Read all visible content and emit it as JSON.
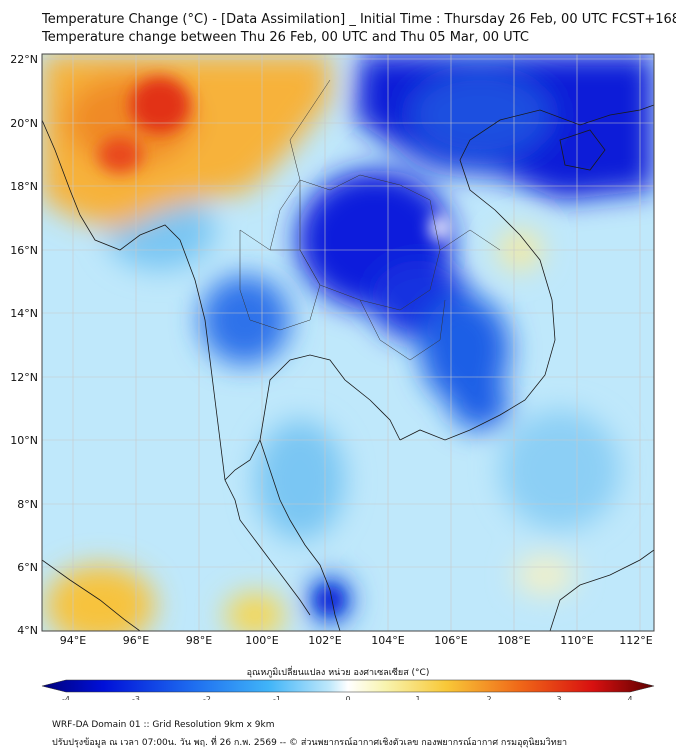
{
  "header": {
    "title_line1": "Temperature Change (°C) - [Data Assimilation] _ Initial Time : Thursday 26 Feb, 00 UTC FCST+168",
    "title_line2": "Temperature change between Thu 26 Feb, 00 UTC and Thu 05 Mar, 00 UTC"
  },
  "map": {
    "lat_labels": [
      "22°N",
      "20°N",
      "18°N",
      "16°N",
      "14°N",
      "12°N",
      "10°N",
      "8°N",
      "6°N",
      "4°N"
    ],
    "lon_labels": [
      "94°E",
      "96°E",
      "98°E",
      "100°E",
      "102°E",
      "104°E",
      "106°E",
      "108°E",
      "110°E",
      "112°E"
    ],
    "lat_range": [
      4,
      22
    ],
    "lon_range": [
      93,
      112.5
    ],
    "field_colors": {
      "base": "#bfe8fb",
      "cold_strong": "#0a1adc",
      "cold_medium": "#1f5fe6",
      "cool": "#6fbcf2",
      "warm_light": "#f5f0b0",
      "warm": "#f7b23a",
      "hot": "#ec5a1e",
      "hottest": "#e23016"
    }
  },
  "colorbar": {
    "title": "อุณหภูมิเปลี่ยนแปลง หน่วย องศาเซลเซียส (°C)",
    "tick_labels": [
      "-4",
      "-3",
      "-2",
      "-1",
      "0",
      "1",
      "2",
      "3",
      "4"
    ],
    "range": [
      -4,
      4
    ],
    "colors": [
      "#000080",
      "#0010d8",
      "#1060f0",
      "#40a8f8",
      "#a8e0f8",
      "#ffffff",
      "#f8f4a0",
      "#f8c030",
      "#f06018",
      "#d81010",
      "#600000"
    ]
  },
  "footer": {
    "line1": "WRF-DA Domain 01 :: Grid Resolution 9km x 9km",
    "line2": "ปรับปรุงข้อมูล ณ เวลา 07:00น. วัน พฤ. ที่ 26 ก.พ. 2569 -- © ส่วนพยากรณ์อากาศเชิงตัวเลข กองพยากรณ์อากาศ กรมอุตุนิยมวิทยา"
  }
}
